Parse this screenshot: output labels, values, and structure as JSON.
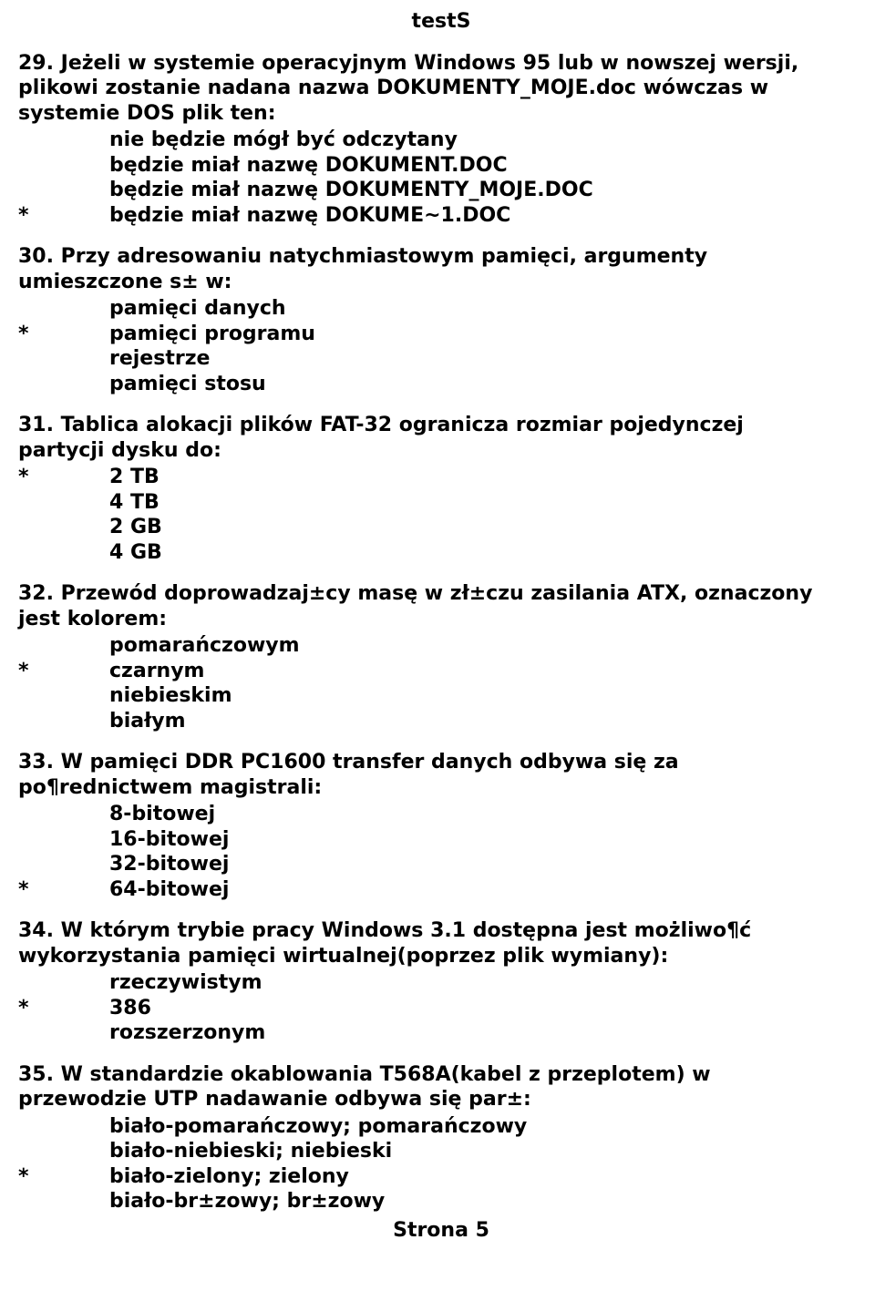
{
  "title": "testS",
  "footer": "Strona 5",
  "questions": [
    {
      "num": "29",
      "stem_lines": [
        "29. Jeżeli w systemie operacyjnym Windows 95 lub w nowszej wersji,",
        "plikowi zostanie nadana nazwa DOKUMENTY_MOJE.doc wówczas w",
        "systemie DOS plik ten:"
      ],
      "answers": [
        {
          "mark": "",
          "text": "nie będzie mógł być odczytany"
        },
        {
          "mark": "",
          "text": "będzie miał nazwę DOKUMENT.DOC"
        },
        {
          "mark": "",
          "text": "będzie miał nazwę DOKUMENTY_MOJE.DOC"
        },
        {
          "mark": "*",
          "text": "będzie miał nazwę DOKUME~1.DOC"
        }
      ]
    },
    {
      "num": "30",
      "stem_lines": [
        "30. Przy adresowaniu natychmiastowym pamięci, argumenty",
        "umieszczone s± w:"
      ],
      "answers": [
        {
          "mark": "",
          "text": "pamięci danych"
        },
        {
          "mark": "*",
          "text": "pamięci programu"
        },
        {
          "mark": "",
          "text": "rejestrze"
        },
        {
          "mark": "",
          "text": "pamięci stosu"
        }
      ]
    },
    {
      "num": "31",
      "stem_lines": [
        "31. Tablica alokacji plików FAT-32 ogranicza rozmiar pojedynczej",
        "partycji dysku do:"
      ],
      "answers": [
        {
          "mark": "*",
          "text": "2 TB"
        },
        {
          "mark": "",
          "text": "4 TB"
        },
        {
          "mark": "",
          "text": "2 GB"
        },
        {
          "mark": "",
          "text": "4 GB"
        }
      ]
    },
    {
      "num": "32",
      "stem_lines": [
        "32. Przewód doprowadzaj±cy masę w zł±czu zasilania ATX, oznaczony",
        "jest kolorem:"
      ],
      "answers": [
        {
          "mark": "",
          "text": "pomarańczowym"
        },
        {
          "mark": "*",
          "text": "czarnym"
        },
        {
          "mark": "",
          "text": "niebieskim"
        },
        {
          "mark": "",
          "text": "białym"
        }
      ]
    },
    {
      "num": "33",
      "stem_lines": [
        "33. W pamięci DDR PC1600 transfer danych odbywa się za",
        "po¶rednictwem magistrali:"
      ],
      "answers": [
        {
          "mark": "",
          "text": "8-bitowej"
        },
        {
          "mark": "",
          "text": "16-bitowej"
        },
        {
          "mark": "",
          "text": "32-bitowej"
        },
        {
          "mark": "*",
          "text": "64-bitowej"
        }
      ]
    },
    {
      "num": "34",
      "stem_lines": [
        "34. W którym trybie pracy Windows 3.1 dostępna jest możliwo¶ć",
        "wykorzystania pamięci wirtualnej(poprzez plik wymiany):"
      ],
      "answers": [
        {
          "mark": "",
          "text": "rzeczywistym"
        },
        {
          "mark": "*",
          "text": "386"
        },
        {
          "mark": "",
          "text": "rozszerzonym"
        }
      ]
    },
    {
      "num": "35",
      "stem_lines": [
        "35. W standardzie okablowania T568A(kabel z przeplotem) w",
        "przewodzie UTP nadawanie odbywa się par±:"
      ],
      "answers": [
        {
          "mark": "",
          "text": "biało-pomarańczowy; pomarańczowy"
        },
        {
          "mark": "",
          "text": "biało-niebieski; niebieski"
        },
        {
          "mark": "*",
          "text": "biało-zielony; zielony"
        },
        {
          "mark": "",
          "text": "biało-br±zowy; br±zowy"
        }
      ]
    }
  ]
}
